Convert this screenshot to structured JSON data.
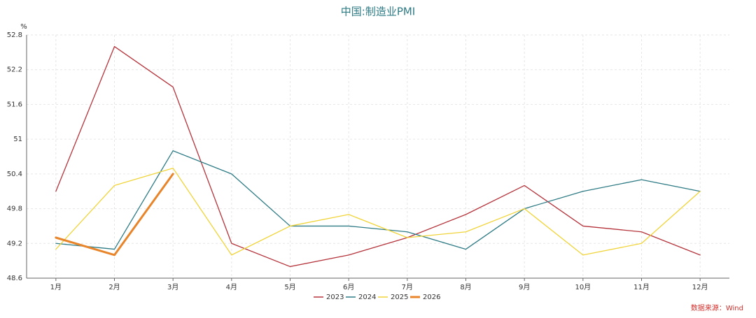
{
  "chart_data": {
    "type": "line",
    "title": "中国:制造业PMI",
    "y_unit": "%",
    "source": "数据来源：Wind",
    "categories": [
      "1月",
      "2月",
      "3月",
      "4月",
      "5月",
      "6月",
      "7月",
      "8月",
      "9月",
      "10月",
      "11月",
      "12月"
    ],
    "series": [
      {
        "name": "2023",
        "color": "#b5343c",
        "values": [
          50.1,
          52.6,
          51.9,
          49.2,
          48.8,
          49.0,
          49.3,
          49.7,
          50.2,
          49.5,
          49.4,
          49.0
        ]
      },
      {
        "name": "2024",
        "color": "#2e7b85",
        "values": [
          49.2,
          49.1,
          50.8,
          50.4,
          49.5,
          49.5,
          49.4,
          49.1,
          49.8,
          50.1,
          50.3,
          50.1
        ]
      },
      {
        "name": "2025",
        "color": "#f0d43a",
        "values": [
          49.1,
          50.2,
          50.5,
          49.0,
          49.5,
          49.7,
          49.3,
          49.4,
          49.8,
          49.0,
          49.2,
          50.1
        ]
      },
      {
        "name": "2026",
        "color": "#e8842a",
        "values": [
          49.3,
          49.0,
          50.4,
          null,
          null,
          null,
          null,
          null,
          null,
          null,
          null,
          null
        ]
      }
    ],
    "ylim": [
      48.6,
      52.8
    ],
    "yticks": [
      48.6,
      49.2,
      49.8,
      50.4,
      51,
      51.6,
      52.2,
      52.8
    ],
    "grid": true,
    "legend": "bottom"
  }
}
